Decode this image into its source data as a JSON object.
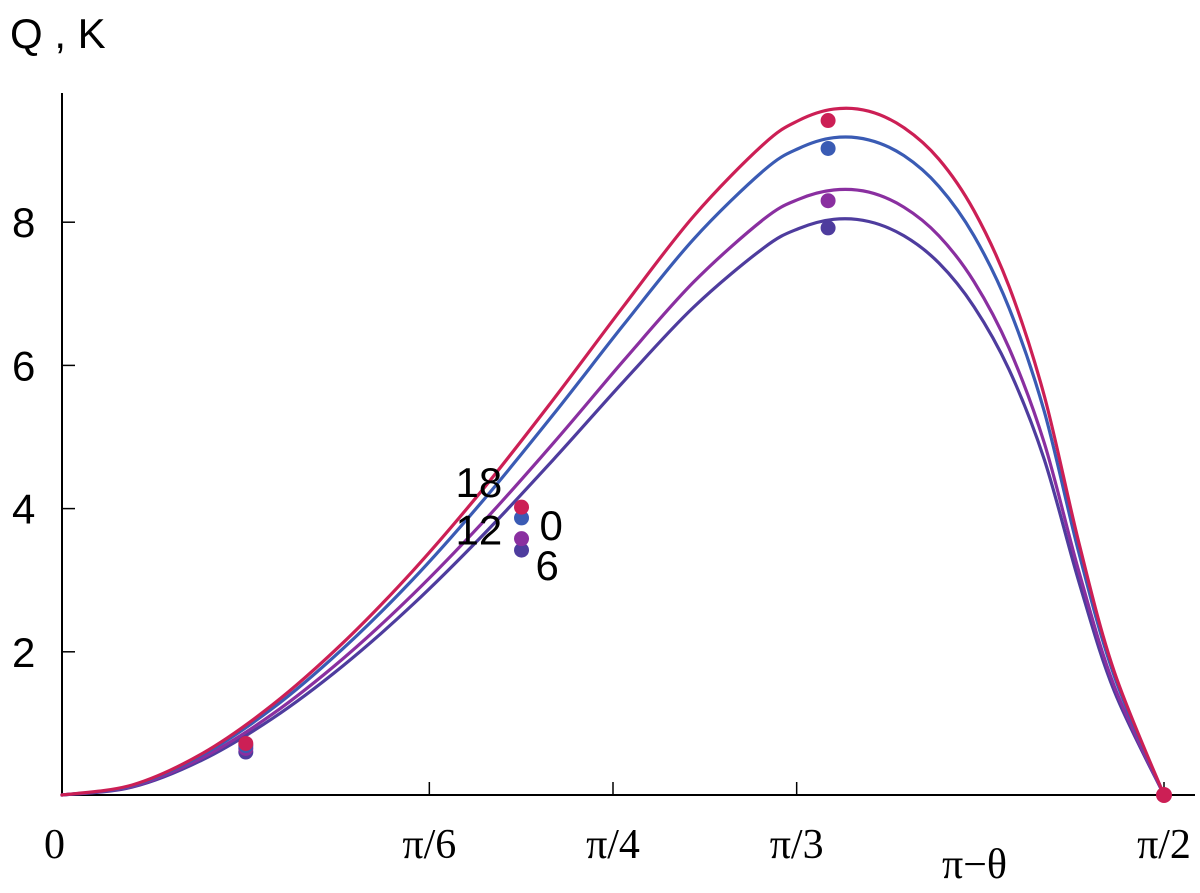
{
  "chart_data": {
    "type": "line",
    "ylabel": "Q , K",
    "xlabel": "π−θ",
    "xlim": [
      0,
      1.5708
    ],
    "ylim": [
      0,
      9.8
    ],
    "y_ticks": [
      {
        "value": 2,
        "label": "2"
      },
      {
        "value": 4,
        "label": "4"
      },
      {
        "value": 6,
        "label": "6"
      },
      {
        "value": 8,
        "label": "8"
      }
    ],
    "x_ticks": [
      {
        "value": 0,
        "label": "0"
      },
      {
        "value": 0.5236,
        "label": "π/6"
      },
      {
        "value": 0.7854,
        "label": "π/4"
      },
      {
        "value": 1.0472,
        "label": "π/3"
      },
      {
        "value": 1.5708,
        "label": "π/2"
      }
    ],
    "series": [
      {
        "name": "18",
        "color": "#cc1f55",
        "x": [
          0,
          0.1,
          0.2,
          0.3,
          0.4,
          0.5,
          0.6,
          0.7,
          0.8,
          0.9,
          1.0,
          1.05,
          1.1,
          1.15,
          1.2,
          1.25,
          1.3,
          1.35,
          1.4,
          1.45,
          1.5,
          1.5708
        ],
        "y": [
          0,
          0.14,
          0.58,
          1.26,
          2.12,
          3.13,
          4.27,
          5.52,
          6.82,
          8.08,
          9.09,
          9.42,
          9.58,
          9.55,
          9.32,
          8.88,
          8.16,
          7.1,
          5.58,
          3.5,
          1.72,
          0
        ],
        "markers": [
          {
            "x": 0.262,
            "y": 0.72
          },
          {
            "x": 0.655,
            "y": 4.02
          },
          {
            "x": 1.092,
            "y": 9.42
          }
        ]
      },
      {
        "name": "0",
        "color": "#3a5bb4",
        "x": [
          0,
          0.1,
          0.2,
          0.3,
          0.4,
          0.5,
          0.6,
          0.7,
          0.8,
          0.9,
          1.0,
          1.05,
          1.1,
          1.15,
          1.2,
          1.25,
          1.3,
          1.35,
          1.4,
          1.45,
          1.5,
          1.5708
        ],
        "y": [
          0,
          0.13,
          0.56,
          1.21,
          2.04,
          3.01,
          4.11,
          5.31,
          6.56,
          7.76,
          8.72,
          9.03,
          9.18,
          9.15,
          8.93,
          8.5,
          7.81,
          6.8,
          5.36,
          3.36,
          1.66,
          0
        ],
        "markers": [
          {
            "x": 0.262,
            "y": 0.69
          },
          {
            "x": 0.655,
            "y": 3.87
          },
          {
            "x": 1.092,
            "y": 9.03
          }
        ]
      },
      {
        "name": "12",
        "color": "#8a2fa0",
        "x": [
          0,
          0.1,
          0.2,
          0.3,
          0.4,
          0.5,
          0.6,
          0.7,
          0.8,
          0.9,
          1.0,
          1.05,
          1.1,
          1.15,
          1.2,
          1.25,
          1.3,
          1.35,
          1.4,
          1.45,
          1.5,
          1.5708
        ],
        "y": [
          0,
          0.12,
          0.52,
          1.13,
          1.9,
          2.8,
          3.81,
          4.91,
          6.06,
          7.16,
          8.04,
          8.32,
          8.45,
          8.42,
          8.21,
          7.81,
          7.17,
          6.24,
          4.92,
          3.1,
          1.52,
          0
        ],
        "markers": [
          {
            "x": 0.262,
            "y": 0.65
          },
          {
            "x": 0.655,
            "y": 3.58
          },
          {
            "x": 1.092,
            "y": 8.3
          }
        ]
      },
      {
        "name": "6",
        "color": "#4e3c9e",
        "x": [
          0,
          0.1,
          0.2,
          0.3,
          0.4,
          0.5,
          0.6,
          0.7,
          0.8,
          0.9,
          1.0,
          1.05,
          1.1,
          1.15,
          1.2,
          1.25,
          1.3,
          1.35,
          1.4,
          1.45,
          1.5,
          1.5708
        ],
        "y": [
          0,
          0.11,
          0.49,
          1.07,
          1.8,
          2.66,
          3.63,
          4.68,
          5.77,
          6.81,
          7.64,
          7.91,
          8.04,
          8.01,
          7.81,
          7.43,
          6.82,
          5.94,
          4.69,
          2.96,
          1.45,
          0
        ],
        "markers": [
          {
            "x": 0.262,
            "y": 0.6
          },
          {
            "x": 0.655,
            "y": 3.42
          },
          {
            "x": 1.092,
            "y": 7.92
          }
        ]
      }
    ],
    "endpoint_marker": {
      "x": 1.5708,
      "y": 0,
      "color": "#cc1f55"
    },
    "annotations": [
      {
        "text": "18",
        "series": "18"
      },
      {
        "text": "0",
        "series": "0"
      },
      {
        "text": "12",
        "series": "12"
      },
      {
        "text": "6",
        "series": "6"
      }
    ]
  }
}
